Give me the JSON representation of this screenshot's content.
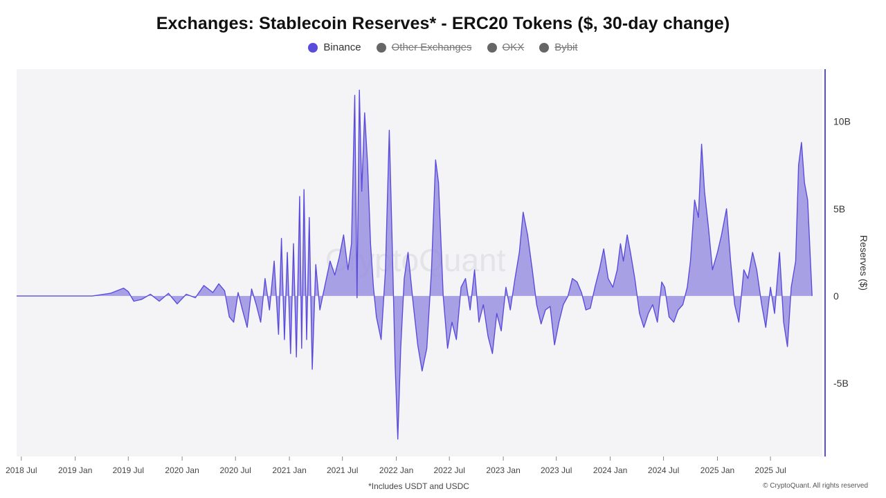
{
  "page": {
    "title": "Exchanges: Stablecoin Reserves* - ERC20 Tokens ($, 30-day change)",
    "footnote": "*Includes USDT and USDC",
    "copyright": "© CryptoQuant. All rights reserved",
    "watermark": "CryptoQuant"
  },
  "legend": [
    {
      "name": "Binance",
      "color": "#5a4cdb",
      "active": true
    },
    {
      "name": "Other Exchanges",
      "color": "#666666",
      "active": false
    },
    {
      "name": "OKX",
      "color": "#666666",
      "active": false
    },
    {
      "name": "Bybit",
      "color": "#666666",
      "active": false
    }
  ],
  "chart_data": {
    "type": "area",
    "title": "Exchanges: Stablecoin Reserves* - ERC20 Tokens ($, 30-day change)",
    "ylabel": "Reserves ($)",
    "y_unit": "billion USD",
    "ylim": [
      -9.2,
      13
    ],
    "yticks": [
      {
        "value": 10,
        "label": "10B"
      },
      {
        "value": 5,
        "label": "5B"
      },
      {
        "value": 0,
        "label": "0"
      },
      {
        "value": -5,
        "label": "-5B"
      }
    ],
    "x_range": [
      "2018-06-15",
      "2025-12-25"
    ],
    "xticks": [
      {
        "date": "2018-07-01",
        "label": "2018 Jul"
      },
      {
        "date": "2019-01-01",
        "label": "2019 Jan"
      },
      {
        "date": "2019-07-01",
        "label": "2019 Jul"
      },
      {
        "date": "2020-01-01",
        "label": "2020 Jan"
      },
      {
        "date": "2020-07-01",
        "label": "2020 Jul"
      },
      {
        "date": "2021-01-01",
        "label": "2021 Jan"
      },
      {
        "date": "2021-07-01",
        "label": "2021 Jul"
      },
      {
        "date": "2022-01-01",
        "label": "2022 Jan"
      },
      {
        "date": "2022-07-01",
        "label": "2022 Jul"
      },
      {
        "date": "2023-01-01",
        "label": "2023 Jan"
      },
      {
        "date": "2023-07-01",
        "label": "2023 Jul"
      },
      {
        "date": "2024-01-01",
        "label": "2024 Jan"
      },
      {
        "date": "2024-07-01",
        "label": "2024 Jul"
      },
      {
        "date": "2025-01-01",
        "label": "2025 Jan"
      },
      {
        "date": "2025-07-01",
        "label": "2025 Jul"
      }
    ],
    "series": [
      {
        "name": "Binance",
        "color": "#5a4cdb",
        "fill": "#9a90e0",
        "points": [
          [
            "2018-06-15",
            0.0
          ],
          [
            "2019-03-01",
            0.0
          ],
          [
            "2019-05-01",
            0.15
          ],
          [
            "2019-06-15",
            0.45
          ],
          [
            "2019-07-01",
            0.25
          ],
          [
            "2019-07-20",
            -0.3
          ],
          [
            "2019-08-15",
            -0.2
          ],
          [
            "2019-09-15",
            0.1
          ],
          [
            "2019-10-15",
            -0.3
          ],
          [
            "2019-11-15",
            0.15
          ],
          [
            "2019-12-15",
            -0.45
          ],
          [
            "2020-01-15",
            0.1
          ],
          [
            "2020-02-15",
            -0.1
          ],
          [
            "2020-03-15",
            0.6
          ],
          [
            "2020-04-15",
            0.2
          ],
          [
            "2020-05-05",
            0.7
          ],
          [
            "2020-05-25",
            0.3
          ],
          [
            "2020-06-10",
            -1.2
          ],
          [
            "2020-06-25",
            -1.5
          ],
          [
            "2020-07-10",
            0.2
          ],
          [
            "2020-07-25",
            -0.8
          ],
          [
            "2020-08-10",
            -1.8
          ],
          [
            "2020-08-25",
            0.4
          ],
          [
            "2020-09-10",
            -0.5
          ],
          [
            "2020-09-25",
            -1.5
          ],
          [
            "2020-10-10",
            1.0
          ],
          [
            "2020-10-25",
            -0.8
          ],
          [
            "2020-11-10",
            2.0
          ],
          [
            "2020-11-25",
            -2.2
          ],
          [
            "2020-12-05",
            3.3
          ],
          [
            "2020-12-15",
            -2.5
          ],
          [
            "2020-12-25",
            2.5
          ],
          [
            "2021-01-05",
            -3.3
          ],
          [
            "2021-01-15",
            3.0
          ],
          [
            "2021-01-25",
            -3.5
          ],
          [
            "2021-02-05",
            5.7
          ],
          [
            "2021-02-12",
            -3.0
          ],
          [
            "2021-02-20",
            6.1
          ],
          [
            "2021-03-01",
            -2.5
          ],
          [
            "2021-03-10",
            4.5
          ],
          [
            "2021-03-20",
            -4.2
          ],
          [
            "2021-04-01",
            1.8
          ],
          [
            "2021-04-15",
            -0.8
          ],
          [
            "2021-05-01",
            0.5
          ],
          [
            "2021-05-20",
            2.0
          ],
          [
            "2021-06-05",
            1.2
          ],
          [
            "2021-06-20",
            2.2
          ],
          [
            "2021-07-05",
            3.5
          ],
          [
            "2021-07-20",
            1.5
          ],
          [
            "2021-08-01",
            3.0
          ],
          [
            "2021-08-12",
            11.5
          ],
          [
            "2021-08-20",
            -0.1
          ],
          [
            "2021-08-28",
            11.8
          ],
          [
            "2021-09-05",
            6.0
          ],
          [
            "2021-09-15",
            10.5
          ],
          [
            "2021-09-25",
            7.5
          ],
          [
            "2021-10-05",
            3.0
          ],
          [
            "2021-10-15",
            0.5
          ],
          [
            "2021-10-25",
            -1.2
          ],
          [
            "2021-11-10",
            -2.5
          ],
          [
            "2021-11-25",
            1.5
          ],
          [
            "2021-12-08",
            9.5
          ],
          [
            "2021-12-18",
            3.0
          ],
          [
            "2021-12-28",
            -4.0
          ],
          [
            "2022-01-06",
            -8.2
          ],
          [
            "2022-01-16",
            -3.0
          ],
          [
            "2022-01-28",
            1.0
          ],
          [
            "2022-02-10",
            2.5
          ],
          [
            "2022-02-28",
            -0.5
          ],
          [
            "2022-03-15",
            -2.8
          ],
          [
            "2022-03-30",
            -4.3
          ],
          [
            "2022-04-15",
            -3.0
          ],
          [
            "2022-05-01",
            1.5
          ],
          [
            "2022-05-15",
            7.8
          ],
          [
            "2022-05-25",
            6.5
          ],
          [
            "2022-06-10",
            0.0
          ],
          [
            "2022-06-25",
            -3.0
          ],
          [
            "2022-07-10",
            -1.5
          ],
          [
            "2022-07-25",
            -2.5
          ],
          [
            "2022-08-10",
            0.5
          ],
          [
            "2022-08-25",
            1.0
          ],
          [
            "2022-09-10",
            -0.8
          ],
          [
            "2022-09-25",
            1.5
          ],
          [
            "2022-10-10",
            -1.5
          ],
          [
            "2022-10-25",
            -0.5
          ],
          [
            "2022-11-10",
            -2.3
          ],
          [
            "2022-11-25",
            -3.3
          ],
          [
            "2022-12-10",
            -1.0
          ],
          [
            "2022-12-25",
            -2.0
          ],
          [
            "2023-01-10",
            0.5
          ],
          [
            "2023-01-25",
            -0.8
          ],
          [
            "2023-02-10",
            1.0
          ],
          [
            "2023-02-25",
            2.5
          ],
          [
            "2023-03-10",
            4.8
          ],
          [
            "2023-03-25",
            3.5
          ],
          [
            "2023-04-10",
            1.5
          ],
          [
            "2023-04-25",
            -0.5
          ],
          [
            "2023-05-10",
            -1.6
          ],
          [
            "2023-05-25",
            -0.8
          ],
          [
            "2023-06-10",
            -0.6
          ],
          [
            "2023-06-25",
            -2.8
          ],
          [
            "2023-07-10",
            -1.5
          ],
          [
            "2023-07-25",
            -0.5
          ],
          [
            "2023-08-10",
            0.0
          ],
          [
            "2023-08-25",
            1.0
          ],
          [
            "2023-09-10",
            0.8
          ],
          [
            "2023-09-25",
            0.2
          ],
          [
            "2023-10-10",
            -0.8
          ],
          [
            "2023-10-25",
            -0.7
          ],
          [
            "2023-11-10",
            0.5
          ],
          [
            "2023-11-25",
            1.5
          ],
          [
            "2023-12-10",
            2.7
          ],
          [
            "2023-12-25",
            1.0
          ],
          [
            "2024-01-10",
            0.5
          ],
          [
            "2024-01-25",
            1.5
          ],
          [
            "2024-02-05",
            3.0
          ],
          [
            "2024-02-15",
            2.0
          ],
          [
            "2024-02-28",
            3.5
          ],
          [
            "2024-03-10",
            2.5
          ],
          [
            "2024-03-25",
            1.0
          ],
          [
            "2024-04-10",
            -1.0
          ],
          [
            "2024-04-25",
            -1.8
          ],
          [
            "2024-05-10",
            -1.0
          ],
          [
            "2024-05-25",
            -0.5
          ],
          [
            "2024-06-10",
            -1.5
          ],
          [
            "2024-06-25",
            0.8
          ],
          [
            "2024-07-05",
            0.5
          ],
          [
            "2024-07-20",
            -1.2
          ],
          [
            "2024-08-05",
            -1.5
          ],
          [
            "2024-08-20",
            -0.8
          ],
          [
            "2024-09-05",
            -0.5
          ],
          [
            "2024-09-20",
            0.5
          ],
          [
            "2024-10-01",
            2.0
          ],
          [
            "2024-10-15",
            5.5
          ],
          [
            "2024-10-28",
            4.5
          ],
          [
            "2024-11-08",
            8.7
          ],
          [
            "2024-11-18",
            6.0
          ],
          [
            "2024-12-01",
            4.0
          ],
          [
            "2024-12-15",
            1.5
          ],
          [
            "2025-01-01",
            2.5
          ],
          [
            "2025-01-15",
            3.5
          ],
          [
            "2025-02-01",
            5.0
          ],
          [
            "2025-02-15",
            2.0
          ],
          [
            "2025-03-01",
            -0.5
          ],
          [
            "2025-03-15",
            -1.5
          ],
          [
            "2025-04-01",
            1.5
          ],
          [
            "2025-04-15",
            1.0
          ],
          [
            "2025-05-01",
            2.5
          ],
          [
            "2025-05-15",
            1.5
          ],
          [
            "2025-06-01",
            -0.5
          ],
          [
            "2025-06-15",
            -1.8
          ],
          [
            "2025-07-01",
            0.5
          ],
          [
            "2025-07-15",
            -1.0
          ],
          [
            "2025-08-01",
            2.5
          ],
          [
            "2025-08-15",
            -1.5
          ],
          [
            "2025-08-28",
            -2.9
          ],
          [
            "2025-09-10",
            0.5
          ],
          [
            "2025-09-25",
            2.0
          ],
          [
            "2025-10-05",
            7.5
          ],
          [
            "2025-10-15",
            8.8
          ],
          [
            "2025-10-25",
            6.5
          ],
          [
            "2025-11-05",
            5.5
          ],
          [
            "2025-11-20",
            0.0
          ]
        ]
      }
    ],
    "grid": false,
    "legend_position": "top-center"
  }
}
